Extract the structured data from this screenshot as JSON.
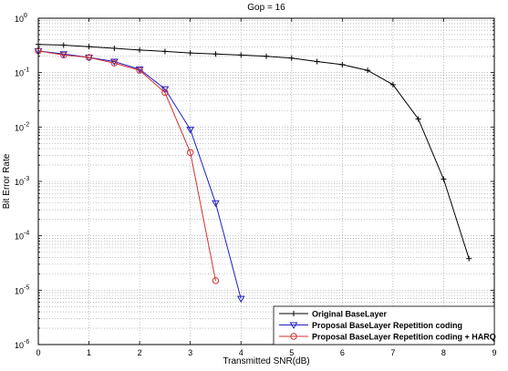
{
  "chart_data": {
    "type": "line",
    "title": "Gop = 16",
    "xlabel": "Transmitted SNR(dB)",
    "ylabel": "Bit Error Rate",
    "xlim": [
      0,
      9
    ],
    "ylim_exp": [
      -6,
      0
    ],
    "yscale": "log",
    "grid": "dotted, major and minor",
    "legend_position": "bottom-right",
    "x_ticks": [
      "0",
      "1",
      "2",
      "3",
      "4",
      "5",
      "6",
      "7",
      "8",
      "9"
    ],
    "y_ticks": [
      {
        "base": "10",
        "exp": "0"
      },
      {
        "base": "10",
        "exp": "-1"
      },
      {
        "base": "10",
        "exp": "-2"
      },
      {
        "base": "10",
        "exp": "-3"
      },
      {
        "base": "10",
        "exp": "-4"
      },
      {
        "base": "10",
        "exp": "-5"
      },
      {
        "base": "10",
        "exp": "-6"
      }
    ],
    "series": [
      {
        "name": "Original BaseLayer",
        "color": "#000000",
        "marker": "plus",
        "x": [
          0,
          0.5,
          1,
          1.5,
          2,
          2.5,
          3,
          3.5,
          4,
          4.5,
          5,
          5.5,
          6,
          6.5,
          7,
          7.5,
          8,
          8.5
        ],
        "y": [
          0.33,
          0.32,
          0.3,
          0.28,
          0.26,
          0.245,
          0.23,
          0.22,
          0.21,
          0.2,
          0.185,
          0.16,
          0.14,
          0.11,
          0.06,
          0.014,
          0.0011,
          3.8e-05
        ]
      },
      {
        "name": "Proposal BaseLayer Repetition coding",
        "color": "#2020c0",
        "marker": "triangle-down",
        "x": [
          0,
          0.5,
          1,
          1.5,
          2,
          2.5,
          3,
          3.5,
          4
        ],
        "y": [
          0.25,
          0.22,
          0.19,
          0.16,
          0.115,
          0.05,
          0.009,
          0.0004,
          7e-06
        ]
      },
      {
        "name": "Proposal BaseLayer Repetition coding + HARQ",
        "color": "#d03030",
        "marker": "circle",
        "x": [
          0,
          0.5,
          1,
          1.5,
          2,
          2.5,
          3,
          3.5
        ],
        "y": [
          0.25,
          0.21,
          0.19,
          0.15,
          0.11,
          0.043,
          0.0034,
          1.5e-05
        ]
      }
    ]
  }
}
